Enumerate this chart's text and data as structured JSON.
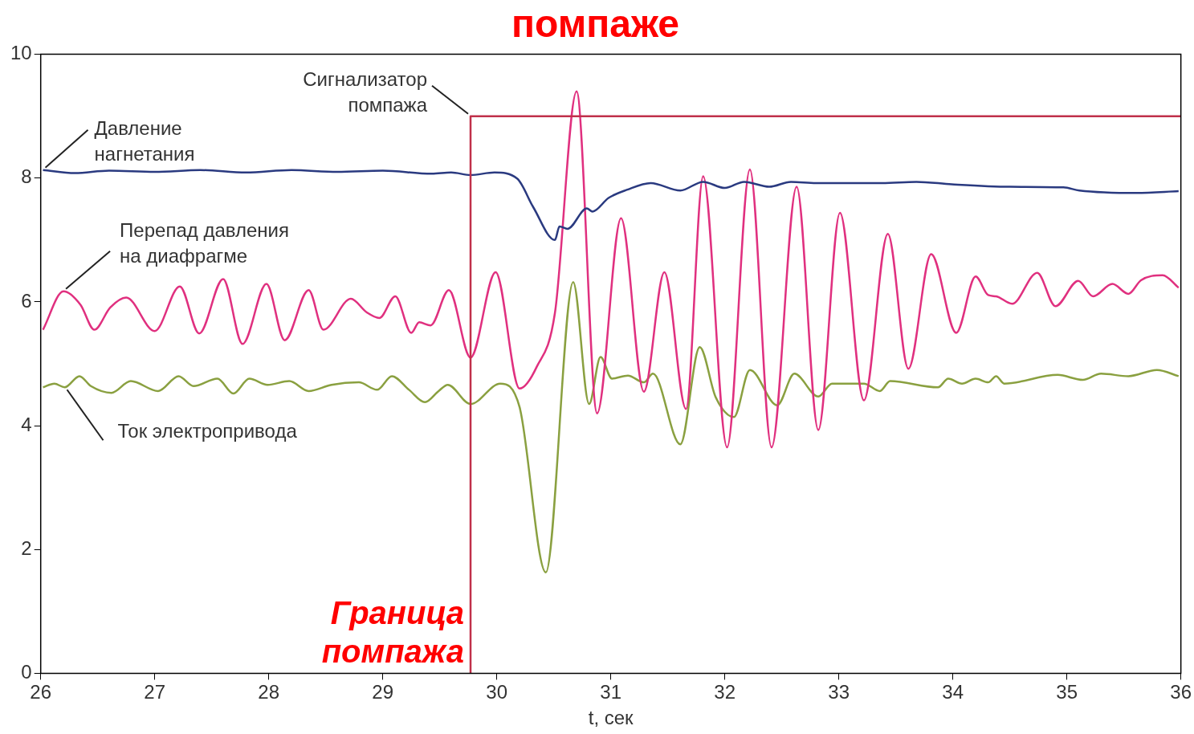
{
  "chart_data": {
    "type": "line",
    "title": "помпаже",
    "xlabel": "t, сек",
    "xlim": [
      26,
      36
    ],
    "xticks": [
      26,
      27,
      28,
      29,
      30,
      31,
      32,
      33,
      34,
      35,
      36
    ],
    "ylim": [
      0,
      10
    ],
    "yticks": [
      0,
      2,
      4,
      6,
      8,
      10
    ],
    "grid": false,
    "legend": false,
    "marker": "none",
    "line_style": "solid",
    "annotations": [
      {
        "text": "Граница помпажа",
        "x": 29.77,
        "y": 0
      }
    ],
    "series": [
      {
        "name": "Сигнализатор помпажа",
        "type": "step",
        "color": "#c0304a",
        "x": [
          29.77,
          29.77,
          36
        ],
        "values": [
          0,
          9,
          9
        ]
      },
      {
        "name": "Давление нагнетания",
        "color": "#2a3a80",
        "x": [
          26.02,
          26.3,
          26.6,
          27.0,
          27.4,
          27.8,
          28.2,
          28.6,
          29.0,
          29.43,
          29.6,
          29.77,
          29.98,
          30.18,
          30.32,
          30.51,
          30.55,
          30.62,
          30.79,
          30.84,
          30.98,
          31.14,
          31.35,
          31.61,
          31.81,
          32.0,
          32.17,
          32.39,
          32.58,
          32.8,
          33.38,
          33.68,
          33.99,
          34.5,
          34.97,
          35.11,
          35.61,
          35.98
        ],
        "values": [
          8.13,
          8.08,
          8.12,
          8.1,
          8.13,
          8.09,
          8.13,
          8.1,
          8.12,
          8.07,
          8.09,
          8.05,
          8.09,
          7.99,
          7.53,
          7.0,
          7.22,
          7.18,
          7.51,
          7.46,
          7.68,
          7.81,
          7.92,
          7.8,
          7.94,
          7.84,
          7.94,
          7.86,
          7.94,
          7.92,
          7.92,
          7.94,
          7.9,
          7.86,
          7.85,
          7.8,
          7.76,
          7.79
        ]
      },
      {
        "name": "Перепад давления на диафрагме",
        "color": "#e0307f",
        "x": [
          26.02,
          26.2,
          26.35,
          26.47,
          26.61,
          26.75,
          27.0,
          27.22,
          27.39,
          27.6,
          27.77,
          27.98,
          28.14,
          28.35,
          28.48,
          28.72,
          28.86,
          28.97,
          29.11,
          29.25,
          29.32,
          29.42,
          29.58,
          29.77,
          29.99,
          30.2,
          30.35,
          30.51,
          30.7,
          30.88,
          31.09,
          31.29,
          31.47,
          31.66,
          31.81,
          32.02,
          32.22,
          32.41,
          32.63,
          32.82,
          33.01,
          33.22,
          33.43,
          33.61,
          33.81,
          34.03,
          34.2,
          34.31,
          34.38,
          34.52,
          34.74,
          34.9,
          35.1,
          35.23,
          35.4,
          35.54,
          35.65,
          35.84,
          35.98
        ],
        "values": [
          5.55,
          6.17,
          5.95,
          5.55,
          5.91,
          6.07,
          5.53,
          6.25,
          5.49,
          6.37,
          5.32,
          6.29,
          5.38,
          6.19,
          5.55,
          6.05,
          5.83,
          5.74,
          6.09,
          5.5,
          5.67,
          5.62,
          6.19,
          5.1,
          6.48,
          4.6,
          4.95,
          5.82,
          9.4,
          4.2,
          7.35,
          4.55,
          6.48,
          4.27,
          8.03,
          3.65,
          8.14,
          3.65,
          7.86,
          3.93,
          7.44,
          4.41,
          7.1,
          4.92,
          6.77,
          5.5,
          6.41,
          6.11,
          6.09,
          5.97,
          6.47,
          5.93,
          6.34,
          6.09,
          6.29,
          6.13,
          6.35,
          6.43,
          6.23
        ]
      },
      {
        "name": "Ток электропривода",
        "color": "#8aa040",
        "x": [
          26.02,
          26.12,
          26.21,
          26.34,
          26.44,
          26.62,
          26.79,
          27.03,
          27.21,
          27.34,
          27.55,
          27.69,
          27.83,
          27.99,
          28.18,
          28.35,
          28.55,
          28.79,
          28.95,
          29.08,
          29.23,
          29.37,
          29.49,
          29.57,
          29.77,
          30.03,
          30.2,
          30.43,
          30.67,
          30.81,
          30.91,
          31.01,
          31.15,
          31.29,
          31.37,
          31.61,
          31.78,
          31.92,
          32.08,
          32.22,
          32.46,
          32.61,
          32.82,
          32.94,
          33.22,
          33.36,
          33.45,
          33.87,
          33.96,
          34.08,
          34.2,
          34.31,
          34.38,
          34.45,
          34.92,
          35.14,
          35.3,
          35.54,
          35.79,
          35.98
        ],
        "values": [
          4.62,
          4.68,
          4.62,
          4.8,
          4.64,
          4.53,
          4.72,
          4.56,
          4.8,
          4.64,
          4.76,
          4.52,
          4.76,
          4.66,
          4.72,
          4.56,
          4.66,
          4.7,
          4.58,
          4.8,
          4.58,
          4.38,
          4.56,
          4.66,
          4.35,
          4.68,
          4.3,
          1.63,
          6.32,
          4.35,
          5.11,
          4.76,
          4.81,
          4.7,
          4.84,
          3.7,
          5.27,
          4.46,
          4.14,
          4.9,
          4.33,
          4.84,
          4.47,
          4.68,
          4.68,
          4.56,
          4.72,
          4.62,
          4.76,
          4.68,
          4.76,
          4.7,
          4.8,
          4.68,
          4.82,
          4.74,
          4.84,
          4.8,
          4.9,
          4.8
        ]
      }
    ]
  }
}
